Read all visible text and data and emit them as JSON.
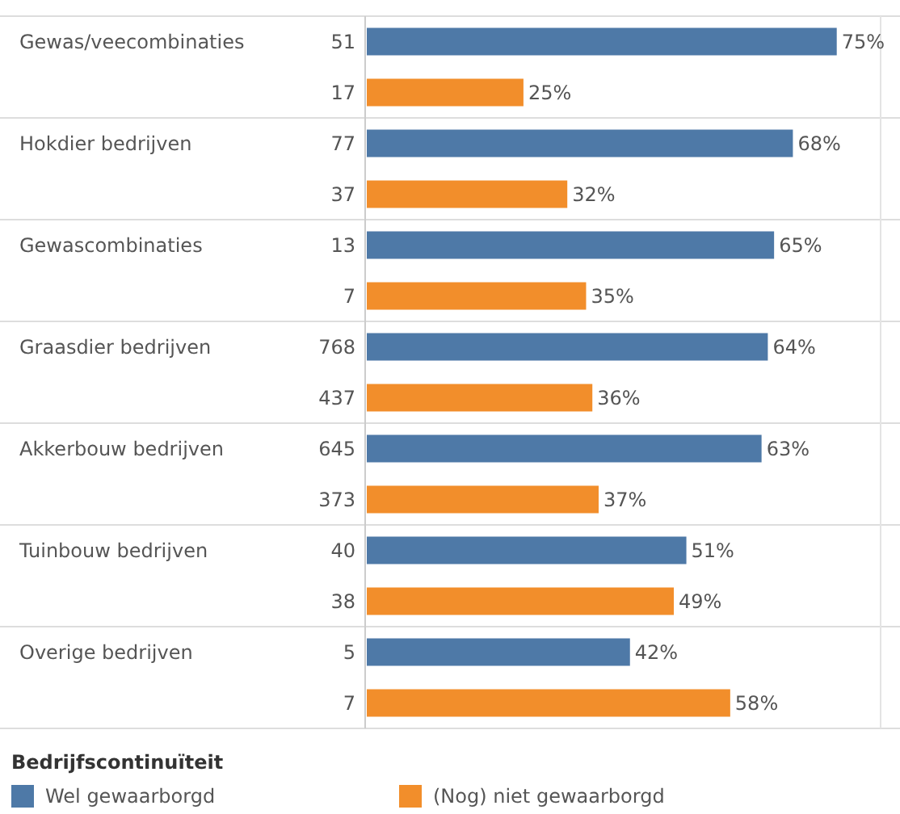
{
  "chart_data": {
    "type": "bar",
    "orientation": "horizontal",
    "categories": [
      "Gewas/veecombinaties",
      "Hokdier bedrijven",
      "Gewascombinaties",
      "Graasdier bedrijven",
      "Akkerbouw bedrijven",
      "Tuinbouw bedrijven",
      "Overige bedrijven"
    ],
    "series": [
      {
        "name": "Wel gewaarborgd",
        "color": "#4e79a7",
        "values": [
          75,
          68,
          65,
          64,
          63,
          51,
          42
        ],
        "value_labels": [
          "75%",
          "68%",
          "65%",
          "64%",
          "63%",
          "51%",
          "42%"
        ]
      },
      {
        "name": "(Nog) niet gewaarborgd",
        "color": "#f28e2b",
        "values": [
          25,
          32,
          35,
          36,
          37,
          49,
          58
        ],
        "value_labels": [
          "25%",
          "32%",
          "35%",
          "36%",
          "37%",
          "49%",
          "58%"
        ]
      }
    ],
    "xlim": [
      0,
      82
    ],
    "tick_labels": "y",
    "legend": "bottom",
    "legend_title": "Bedrijfscontinuïteit",
    "annotations": [
      "51",
      "17",
      "77",
      "37",
      "13",
      "7",
      "768",
      "437",
      "645",
      "373",
      "40",
      "38",
      "5",
      "7"
    ]
  }
}
